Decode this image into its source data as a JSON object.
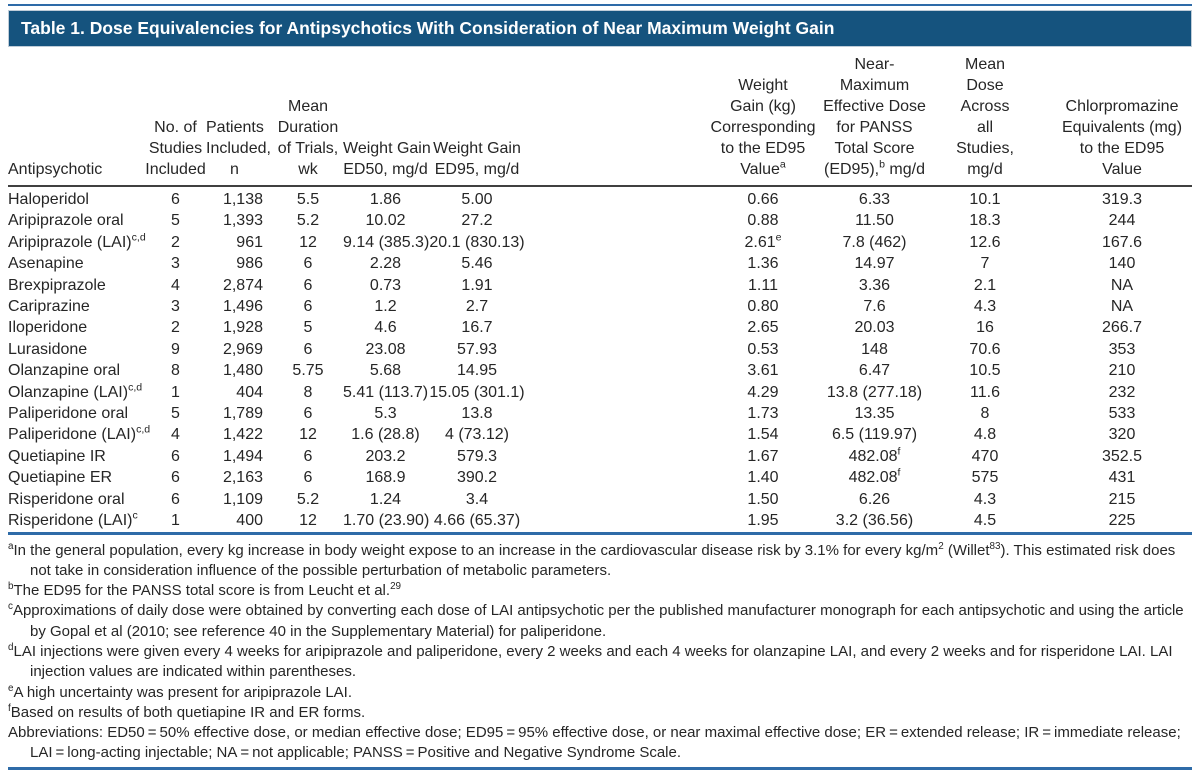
{
  "page": {
    "title": "Table 1. Dose Equivalencies for Antipsychotics With Consideration of Near Maximum Weight Gain"
  },
  "colors": {
    "title_bar_bg": "#15537e",
    "title_text": "#ffffff",
    "rule_blue": "#2e6ba8",
    "header_rule_dark": "#404040",
    "body_text": "#262626"
  },
  "table": {
    "columns": [
      {
        "id": "antipsychotic",
        "lines": [
          "Antipsychotic"
        ]
      },
      {
        "id": "studies-included",
        "lines": [
          "No. of",
          "Studies",
          "Included"
        ]
      },
      {
        "id": "patients-included",
        "lines": [
          "Patients",
          "Included,",
          "n"
        ]
      },
      {
        "id": "trial-duration",
        "lines": [
          "Mean",
          "Duration",
          "of Trials,",
          "wk"
        ]
      },
      {
        "id": "weight-gain-ed50",
        "lines": [
          "Weight Gain",
          "ED50, mg/d"
        ]
      },
      {
        "id": "weight-gain-ed95",
        "lines": [
          "Weight Gain",
          "ED95, mg/d"
        ]
      },
      {
        "id": "weight-gain-kg-ed95",
        "lines": [
          "Weight",
          "Gain (kg)",
          "Corresponding",
          "to the ED95",
          "Value|a|"
        ]
      },
      {
        "id": "near-max-effective-dose",
        "lines": [
          "Near-",
          "Maximum",
          "Effective Dose",
          "for PANSS",
          "Total Score",
          "(ED95),|b| mg/d"
        ]
      },
      {
        "id": "mean-dose",
        "lines": [
          "Mean",
          "Dose",
          "Across",
          "all",
          "Studies,",
          "mg/d"
        ]
      },
      {
        "id": "chlorpromazine-equivalents",
        "lines": [
          "Chlorpromazine",
          "Equivalents (mg)",
          "to the ED95",
          "Value"
        ]
      }
    ],
    "rows": [
      [
        "Haloperidol",
        "6",
        "1,138",
        "5.5",
        "1.86",
        "5.00",
        "0.66",
        "6.33",
        "10.1",
        "319.3"
      ],
      [
        "Aripiprazole oral",
        "5",
        "1,393",
        "5.2",
        "10.02",
        "27.2",
        "0.88",
        "11.50",
        "18.3",
        "244"
      ],
      [
        "Aripiprazole (LAI)|c,d|",
        "2",
        "961",
        "12",
        "9.14 (385.3)",
        "20.1 (830.13)",
        "2.61|e|",
        "7.8 (462)",
        "12.6",
        "167.6"
      ],
      [
        "Asenapine",
        "3",
        "986",
        "6",
        "2.28",
        "5.46",
        "1.36",
        "14.97",
        "7",
        "140"
      ],
      [
        "Brexpiprazole",
        "4",
        "2,874",
        "6",
        "0.73",
        "1.91",
        "1.11",
        "3.36",
        "2.1",
        "NA"
      ],
      [
        "Cariprazine",
        "3",
        "1,496",
        "6",
        "1.2",
        "2.7",
        "0.80",
        "7.6",
        "4.3",
        "NA"
      ],
      [
        "Iloperidone",
        "2",
        "1,928",
        "5",
        "4.6",
        "16.7",
        "2.65",
        "20.03",
        "16",
        "266.7"
      ],
      [
        "Lurasidone",
        "9",
        "2,969",
        "6",
        "23.08",
        "57.93",
        "0.53",
        "148",
        "70.6",
        "353"
      ],
      [
        "Olanzapine oral",
        "8",
        "1,480",
        "5.75",
        "5.68",
        "14.95",
        "3.61",
        "6.47",
        "10.5",
        "210"
      ],
      [
        "Olanzapine (LAI)|c,d|",
        "1",
        "404",
        "8",
        "5.41 (113.7)",
        "15.05 (301.1)",
        "4.29",
        "13.8 (277.18)",
        "11.6",
        "232"
      ],
      [
        "Paliperidone oral",
        "5",
        "1,789",
        "6",
        "5.3",
        "13.8",
        "1.73",
        "13.35",
        "8",
        "533"
      ],
      [
        "Paliperidone (LAI)|c,d|",
        "4",
        "1,422",
        "12",
        "1.6 (28.8)",
        "4 (73.12)",
        "1.54",
        "6.5 (119.97)",
        "4.8",
        "320"
      ],
      [
        "Quetiapine IR",
        "6",
        "1,494",
        "6",
        "203.2",
        "579.3",
        "1.67",
        "482.08|f|",
        "470",
        "352.5"
      ],
      [
        "Quetiapine ER",
        "6",
        "2,163",
        "6",
        "168.9",
        "390.2",
        "1.40",
        "482.08|f|",
        "575",
        "431"
      ],
      [
        "Risperidone oral",
        "6",
        "1,109",
        "5.2",
        "1.24",
        "3.4",
        "1.50",
        "6.26",
        "4.3",
        "215"
      ],
      [
        "Risperidone (LAI)|c|",
        "1",
        "400",
        "12",
        "1.70 (23.90)",
        "4.66 (65.37)",
        "1.95",
        "3.2 (36.56)",
        "4.5",
        "225"
      ]
    ],
    "footnotes": [
      {
        "marker": "a",
        "text": "In the general population, every kg increase in body weight expose to an increase in the cardiovascular disease risk by 3.1% for every kg/m|2| (Willet|83|). This estimated risk does not take in consideration influence of the possible perturbation of metabolic parameters."
      },
      {
        "marker": "b",
        "text": "The ED95 for the PANSS total score is from Leucht et al.|29|"
      },
      {
        "marker": "c",
        "text": "Approximations of daily dose were obtained by converting each dose of LAI antipsychotic per the published manufacturer monograph for each antipsychotic and using the article by Gopal et al (2010; see reference 40 in the Supplementary Material) for paliperidone."
      },
      {
        "marker": "d",
        "text": "LAI injections were given every 4 weeks for aripiprazole and paliperidone, every 2 weeks and each 4 weeks for olanzapine LAI, and every 2 weeks and for risperidone LAI. LAI injection values are indicated within parentheses."
      },
      {
        "marker": "e",
        "text": "A high uncertainty was present for aripiprazole LAI."
      },
      {
        "marker": "f",
        "text": "Based on results of both quetiapine IR and ER forms."
      }
    ],
    "abbreviations": "Abbreviations: ED50 = 50% effective dose, or median effective dose; ED95 = 95% effective dose, or near maximal effective dose; ER = extended release; IR = immediate release; LAI = long-acting injectable; NA = not applicable; PANSS = Positive and Negative Syndrome Scale."
  }
}
